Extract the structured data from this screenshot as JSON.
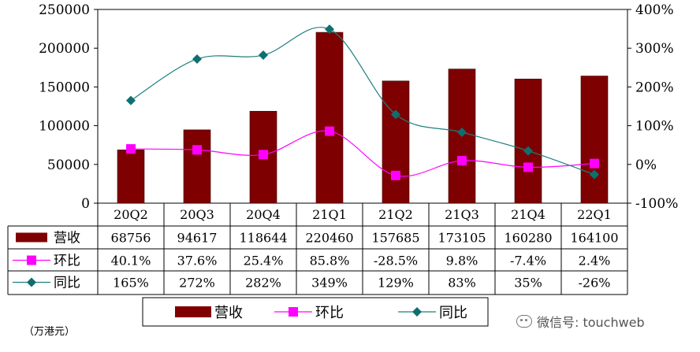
{
  "chart_data": {
    "type": "bar",
    "categories": [
      "20Q2",
      "20Q3",
      "20Q4",
      "21Q1",
      "21Q2",
      "21Q3",
      "21Q4",
      "22Q1"
    ],
    "series": [
      {
        "name": "营收",
        "kind": "bar",
        "axis": "left",
        "values": [
          68756,
          94617,
          118644,
          220460,
          157685,
          173105,
          160280,
          164100
        ],
        "labels": [
          "68756",
          "94617",
          "118644",
          "220460",
          "157685",
          "173105",
          "160280",
          "164100"
        ]
      },
      {
        "name": "环比",
        "kind": "line",
        "axis": "right",
        "values": [
          40.1,
          37.6,
          25.4,
          85.8,
          -28.5,
          9.8,
          -7.4,
          2.4
        ],
        "labels": [
          "40.1%",
          "37.6%",
          "25.4%",
          "85.8%",
          "-28.5%",
          "9.8%",
          "-7.4%",
          "2.4%"
        ]
      },
      {
        "name": "同比",
        "kind": "line",
        "axis": "right",
        "values": [
          165,
          272,
          282,
          349,
          129,
          83,
          35,
          -26
        ],
        "labels": [
          "165%",
          "272%",
          "282%",
          "349%",
          "129%",
          "83%",
          "35%",
          "-26%"
        ]
      }
    ],
    "y_left": {
      "ylim": [
        0,
        250000
      ],
      "ticks": [
        "0",
        "50000",
        "100000",
        "150000",
        "200000",
        "250000"
      ]
    },
    "y_right": {
      "ylim": [
        -100,
        400
      ],
      "ticks": [
        "-100%",
        "0%",
        "100%",
        "200%",
        "300%",
        "400%"
      ]
    },
    "legend": [
      "营收",
      "环比",
      "同比"
    ],
    "legend_position": "bottom",
    "grid": false,
    "unit_note": "（万港元）"
  },
  "colors": {
    "bar": "#7f0000",
    "mom": "#ff00ff",
    "yoy": "#1f7f7f",
    "yoy_marker": "#0f6f6f"
  },
  "watermark": "微信号: touchweb"
}
